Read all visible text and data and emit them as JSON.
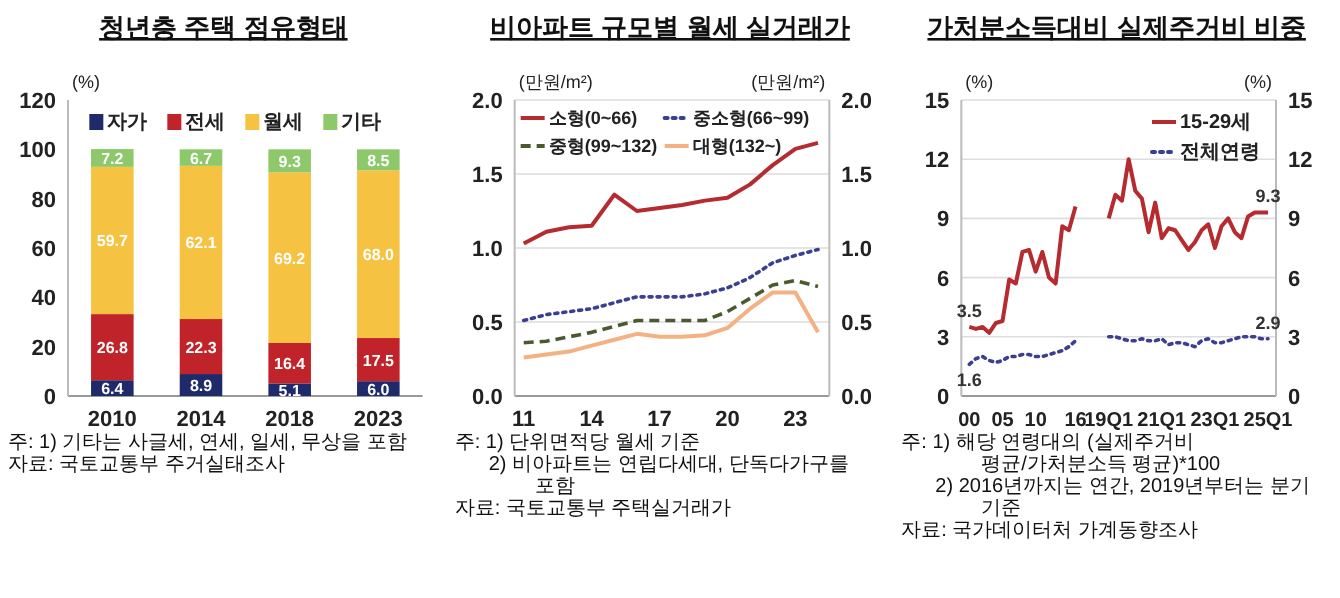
{
  "chart_data": [
    {
      "type": "bar",
      "title": "청년층 주택 점유형태",
      "ylabel": "(%)",
      "categories": [
        "2010",
        "2014",
        "2018",
        "2023"
      ],
      "stacked": true,
      "series": [
        {
          "name": "자가",
          "color": "#1f2a6b",
          "values": [
            6.4,
            8.9,
            5.1,
            6.0
          ],
          "value_labels": [
            "6.4",
            "8.9",
            "5.1",
            "6.0"
          ]
        },
        {
          "name": "전세",
          "color": "#c0232a",
          "values": [
            26.8,
            22.3,
            16.4,
            17.5
          ],
          "value_labels": [
            "26.8",
            "22.3",
            "16.4",
            "17.5"
          ]
        },
        {
          "name": "월세",
          "color": "#f5c242",
          "values": [
            59.7,
            62.1,
            69.2,
            68.0
          ],
          "value_labels": [
            "59.7",
            "62.1",
            "69.2",
            "68.0"
          ]
        },
        {
          "name": "기타",
          "color": "#8dc86a",
          "values": [
            7.2,
            6.7,
            9.3,
            8.5
          ],
          "value_labels": [
            "7.2",
            "6.7",
            "9.3",
            "8.5"
          ]
        }
      ],
      "ylim": [
        0,
        120
      ],
      "yticks": [
        0,
        20,
        40,
        60,
        80,
        100,
        120
      ],
      "legend": "top",
      "annotations": [
        "주: 1) 기타는 사글세, 연세, 일세, 무상을 포함",
        "자료: 국토교통부 주거실태조사"
      ]
    },
    {
      "type": "line",
      "title": "비아파트 규모별 월세 실거래가",
      "ylabel": "(만원/m²)",
      "y2label": "(만원/m²)",
      "x": [
        2011,
        2012,
        2013,
        2014,
        2015,
        2016,
        2017,
        2018,
        2019,
        2020,
        2021,
        2022,
        2023,
        2024
      ],
      "series": [
        {
          "name": "소형(0~66)",
          "color": "#b52b2f",
          "line_style": "solid",
          "values": [
            1.03,
            1.11,
            1.14,
            1.15,
            1.36,
            1.25,
            1.27,
            1.29,
            1.32,
            1.34,
            1.43,
            1.56,
            1.67,
            1.71
          ]
        },
        {
          "name": "중소형(66~99)",
          "color": "#3a3f8f",
          "line_style": "dotted",
          "values": [
            0.51,
            0.55,
            0.57,
            0.59,
            0.63,
            0.67,
            0.67,
            0.67,
            0.69,
            0.73,
            0.8,
            0.9,
            0.95,
            0.99
          ]
        },
        {
          "name": "중형(99~132)",
          "color": "#4a5a2e",
          "line_style": "dashed",
          "values": [
            0.36,
            0.37,
            0.4,
            0.43,
            0.47,
            0.51,
            0.51,
            0.51,
            0.51,
            0.57,
            0.66,
            0.75,
            0.78,
            0.74
          ]
        },
        {
          "name": "대형(132~)",
          "color": "#f4b183",
          "line_style": "solid",
          "values": [
            0.26,
            0.28,
            0.3,
            0.34,
            0.38,
            0.42,
            0.4,
            0.4,
            0.41,
            0.46,
            0.59,
            0.7,
            0.7,
            0.43
          ]
        }
      ],
      "xlim": [
        2010.6,
        2024.5
      ],
      "xticks": [
        {
          "value": 2011,
          "label": "11"
        },
        {
          "value": 2014,
          "label": "14"
        },
        {
          "value": 2017,
          "label": "17"
        },
        {
          "value": 2020,
          "label": "20"
        },
        {
          "value": 2023,
          "label": "23"
        }
      ],
      "ylim": [
        0,
        2
      ],
      "yticks": [
        {
          "value": 0,
          "label": "0.0"
        },
        {
          "value": 0.5,
          "label": "0.5"
        },
        {
          "value": 1,
          "label": "1.0"
        },
        {
          "value": 1.5,
          "label": "1.5"
        },
        {
          "value": 2,
          "label": "2.0"
        }
      ],
      "y2lim": [
        0,
        2
      ],
      "y2ticks": [
        {
          "value": 0,
          "label": "0.0"
        },
        {
          "value": 0.5,
          "label": "0.5"
        },
        {
          "value": 1,
          "label": "1.0"
        },
        {
          "value": 1.5,
          "label": "1.5"
        },
        {
          "value": 2,
          "label": "2.0"
        }
      ],
      "grid": "y",
      "legend": "top left",
      "annotations": [
        "주: 1) 단위면적당 월세 기준",
        "2) 비아파트는 연립다세대, 단독다가구를 포함",
        "자료: 국토교통부 주택실거래가"
      ]
    },
    {
      "type": "line",
      "title": "가처분소득대비 실제주거비 비중",
      "ylabel": "(%)",
      "y2label": "(%)",
      "categories": [
        "00",
        null,
        null,
        null,
        null,
        "05",
        null,
        null,
        null,
        null,
        "10",
        null,
        null,
        null,
        null,
        null,
        "16",
        null,
        null,
        null,
        null,
        "19Q1",
        null,
        null,
        null,
        null,
        null,
        null,
        null,
        "21Q1",
        null,
        null,
        null,
        null,
        null,
        null,
        null,
        "23Q1",
        null,
        null,
        null,
        null,
        null,
        null,
        null,
        "25Q1"
      ],
      "series": [
        {
          "name": "15-29세",
          "color": "#b52b2f",
          "line_style": "solid",
          "values": [
            3.5,
            3.4,
            3.5,
            3.2,
            3.7,
            3.8,
            5.9,
            5.7,
            7.3,
            7.4,
            6.3,
            7.3,
            6.0,
            5.7,
            8.6,
            8.4,
            9.6,
            null,
            null,
            null,
            null,
            9.0,
            10.2,
            9.9,
            12.0,
            10.4,
            10.0,
            8.3,
            9.8,
            8.0,
            8.5,
            8.4,
            7.9,
            7.4,
            7.8,
            8.4,
            8.7,
            7.5,
            8.6,
            9.0,
            8.3,
            8.0,
            9.1,
            9.3,
            9.3,
            9.3
          ]
        },
        {
          "name": "전체연령",
          "color": "#3a3f8f",
          "line_style": "dotted",
          "values": [
            1.6,
            1.9,
            2.0,
            1.8,
            1.7,
            1.8,
            2.0,
            2.0,
            2.1,
            2.1,
            2.0,
            2.0,
            2.1,
            2.2,
            2.3,
            2.5,
            2.8,
            null,
            null,
            null,
            null,
            3.0,
            3.0,
            2.9,
            2.8,
            2.8,
            2.9,
            2.8,
            2.8,
            2.9,
            2.6,
            2.7,
            2.7,
            2.6,
            2.5,
            2.8,
            2.9,
            2.7,
            2.7,
            2.8,
            2.9,
            3.0,
            3.0,
            3.0,
            2.9,
            2.9
          ]
        }
      ],
      "ylim": [
        0,
        15
      ],
      "yticks": [
        0,
        3,
        6,
        9,
        12,
        15
      ],
      "y2lim": [
        0,
        15
      ],
      "y2ticks": [
        0,
        3,
        6,
        9,
        12,
        15
      ],
      "grid": "y",
      "legend": "top right",
      "annotations": [
        {
          "text": "3.5",
          "x": "00",
          "y": 3.5
        },
        {
          "text": "1.6",
          "x": "00",
          "y": 1.6
        },
        {
          "text": "9.3",
          "x": "25Q1",
          "y": 9.3
        },
        {
          "text": "2.9",
          "x": "25Q1",
          "y": 2.9
        },
        "주: 1) 해당 연령대의 (실제주거비 평균/가처분소득 평균)*100",
        "2) 2016년까지는 연간, 2019년부터는 분기 기준",
        "자료: 국가데이터처 가계동향조사"
      ]
    }
  ]
}
